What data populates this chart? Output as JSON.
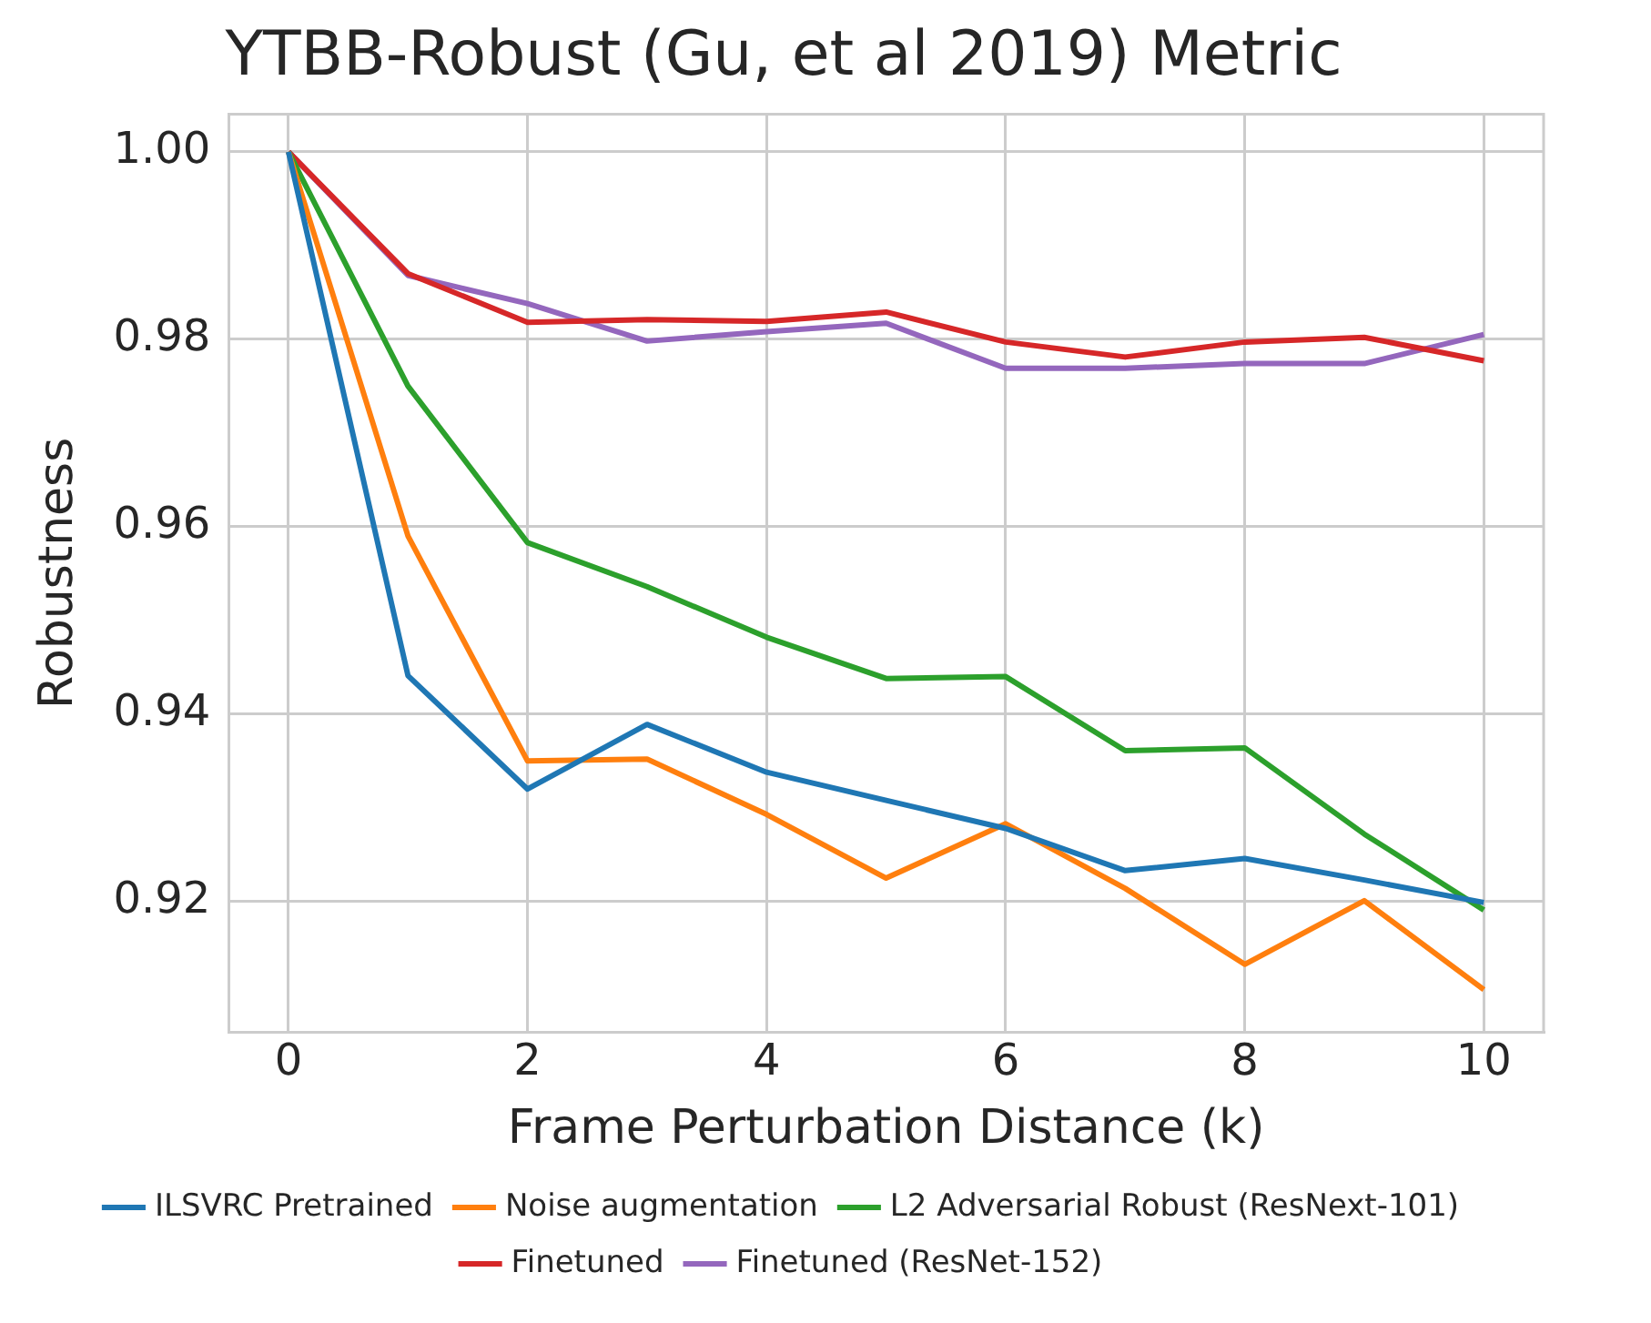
{
  "chart_data": {
    "type": "line",
    "title": "YTBB-Robust (Gu, et al 2019) Metric",
    "xlabel": "Frame Perturbation Distance (k)",
    "ylabel": "Robustness",
    "x": [
      0,
      1,
      2,
      3,
      4,
      5,
      6,
      7,
      8,
      9,
      10
    ],
    "series": [
      {
        "name": "ILSVRC Pretrained",
        "color": "#1f77b4",
        "values": [
          1.0,
          0.9441,
          0.932,
          0.9389,
          0.9338,
          0.9308,
          0.9278,
          0.9233,
          0.9246,
          0.9223,
          0.9199
        ]
      },
      {
        "name": "Noise augmentation",
        "color": "#ff7f0e",
        "values": [
          1.0,
          0.959,
          0.935,
          0.9352,
          0.9293,
          0.9225,
          0.9283,
          0.9214,
          0.9133,
          0.9201,
          0.9106
        ]
      },
      {
        "name": "L2 Adversarial Robust (ResNext-101)",
        "color": "#2ca02c",
        "values": [
          1.0,
          0.975,
          0.9583,
          0.9536,
          0.9482,
          0.9438,
          0.944,
          0.9361,
          0.9364,
          0.9272,
          0.9191
        ]
      },
      {
        "name": "Finetuned",
        "color": "#d62728",
        "values": [
          1.0,
          0.987,
          0.9818,
          0.9821,
          0.9819,
          0.9829,
          0.9797,
          0.9781,
          0.9797,
          0.9802,
          0.9777
        ]
      },
      {
        "name": "Finetuned (ResNet-152)",
        "color": "#9467bd",
        "values": [
          1.0,
          0.9868,
          0.9838,
          0.9798,
          0.9808,
          0.9817,
          0.9769,
          0.9769,
          0.9774,
          0.9774,
          0.9805
        ]
      }
    ],
    "xlim": [
      -0.5,
      10.5
    ],
    "xticks": [
      0,
      2,
      4,
      6,
      8,
      10
    ],
    "ylim": [
      0.9061,
      1.004
    ],
    "yticks": [
      0.92,
      0.94,
      0.96,
      0.98,
      {
        "value": 1.0,
        "label": "1.00"
      }
    ],
    "grid": true,
    "legend": "bottom",
    "marker": "none",
    "line_style": "solid"
  }
}
